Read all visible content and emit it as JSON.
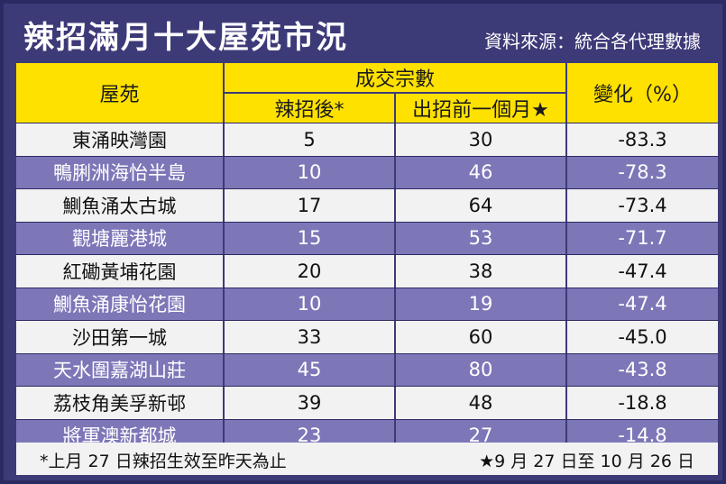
{
  "title": "辣招滿月十大屋苑市況",
  "source": "資料來源：統合各代理數據",
  "colors": {
    "background": "#3d3a78",
    "header": "#ffe100",
    "row_light": "#f2f2f2",
    "row_dark": "#7d77b8"
  },
  "header": {
    "estate": "屋苑",
    "transactions": "成交宗數",
    "after": "辣招後*",
    "before": "出招前一個月★",
    "change": "變化（%）"
  },
  "rows": [
    {
      "estate": "東涌映灣園",
      "after": "5",
      "before": "30",
      "change": "-83.3"
    },
    {
      "estate": "鴨脷洲海怡半島",
      "after": "10",
      "before": "46",
      "change": "-78.3"
    },
    {
      "estate": "鰂魚涌太古城",
      "after": "17",
      "before": "64",
      "change": "-73.4"
    },
    {
      "estate": "觀塘麗港城",
      "after": "15",
      "before": "53",
      "change": "-71.7"
    },
    {
      "estate": "紅磡黃埔花園",
      "after": "20",
      "before": "38",
      "change": "-47.4"
    },
    {
      "estate": "鰂魚涌康怡花園",
      "after": "10",
      "before": "19",
      "change": "-47.4"
    },
    {
      "estate": "沙田第一城",
      "after": "33",
      "before": "60",
      "change": "-45.0"
    },
    {
      "estate": "天水圍嘉湖山莊",
      "after": "45",
      "before": "80",
      "change": "-43.8"
    },
    {
      "estate": "荔枝角美孚新邨",
      "after": "39",
      "before": "48",
      "change": "-18.8"
    },
    {
      "estate": "將軍澳新都城",
      "after": "23",
      "before": "27",
      "change": "-14.8"
    }
  ],
  "footer": {
    "note_left": "*上月 27 日辣招生效至昨天為止",
    "note_right": "★9 月 27 日至 10 月 26 日"
  }
}
